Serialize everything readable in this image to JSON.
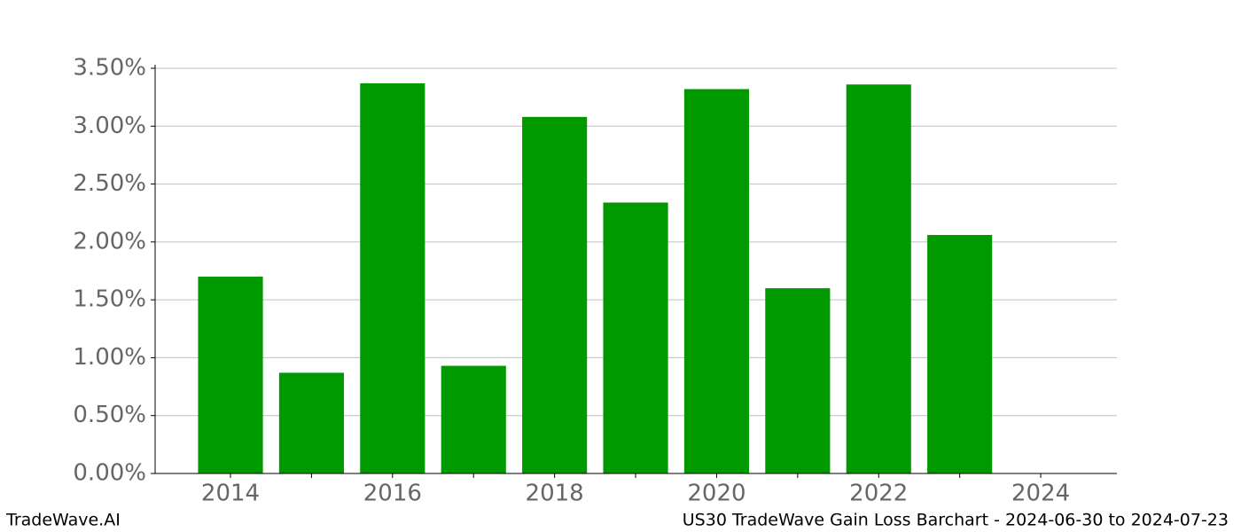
{
  "chart_data": {
    "type": "bar",
    "title": "US30 TradeWave Gain Loss Barchart - 2024-06-30 to 2024-07-23",
    "brand": "TradeWave.AI",
    "x": [
      2014,
      2015,
      2016,
      2017,
      2018,
      2019,
      2020,
      2021,
      2022,
      2023
    ],
    "values": [
      1.7,
      0.87,
      3.37,
      0.93,
      3.08,
      2.34,
      3.32,
      1.6,
      3.36,
      2.06
    ],
    "color": "#009900",
    "xlim": [
      2013.07,
      2024.94
    ],
    "xticks": [
      2014,
      2016,
      2018,
      2020,
      2022,
      2024
    ],
    "xminorticks": [
      2015,
      2017,
      2019,
      2021,
      2023
    ],
    "ylim": [
      0,
      3.5
    ],
    "yticks": [
      {
        "value": 0,
        "label": "0.00%"
      },
      {
        "value": 0.5,
        "label": "0.50%"
      },
      {
        "value": 1,
        "label": "1.00%"
      },
      {
        "value": 1.5,
        "label": "1.50%"
      },
      {
        "value": 2,
        "label": "2.00%"
      },
      {
        "value": 2.5,
        "label": "2.50%"
      },
      {
        "value": 3,
        "label": "3.00%"
      },
      {
        "value": 3.5,
        "label": "3.50%"
      }
    ],
    "grid": true
  }
}
